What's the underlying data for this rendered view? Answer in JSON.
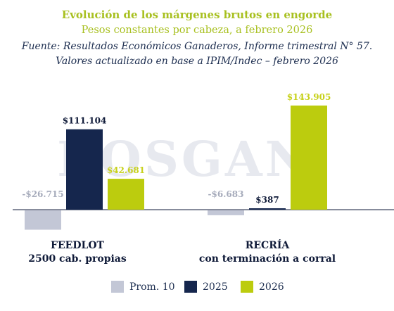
{
  "title": "Evolución de los márgenes brutos en engorde",
  "subtitle": "Pesos constantes por cabeza, a febrero 2026",
  "source_line1": "Fuente: Resultados Económicos Ganaderos, Informe trimestral N° 57.",
  "source_line2": "Valores actualizado en base a IPIM/Indec – febrero 2026",
  "watermark": "ROSGAN",
  "colors": {
    "prom10": "#c3c7d6",
    "y2025": "#15264d",
    "y2026": "#bccc0e",
    "value_label_2026": "#c7d11a",
    "value_label_prom10": "#a6abbb",
    "value_label_2025": "#0f1a38"
  },
  "chart_data": {
    "type": "bar",
    "title": "Evolución de los márgenes brutos en engorde",
    "subtitle": "Pesos constantes por cabeza, a febrero 2026",
    "categories": [
      {
        "line1": "FEEDLOT",
        "line2": "2500 cab. propias"
      },
      {
        "line1": "RECRÍA",
        "line2": "con terminación a corral"
      }
    ],
    "series": [
      {
        "name": "Prom. 10",
        "values": [
          -26715,
          -6683
        ],
        "labels": [
          "-$26.715",
          "-$6.683"
        ]
      },
      {
        "name": "2025",
        "values": [
          111104,
          387
        ],
        "labels": [
          "$111.104",
          "$387"
        ]
      },
      {
        "name": "2026",
        "values": [
          42681,
          143905
        ],
        "labels": [
          "$42.681",
          "$143.905"
        ]
      }
    ],
    "legend_position": "bottom",
    "grid": false
  }
}
